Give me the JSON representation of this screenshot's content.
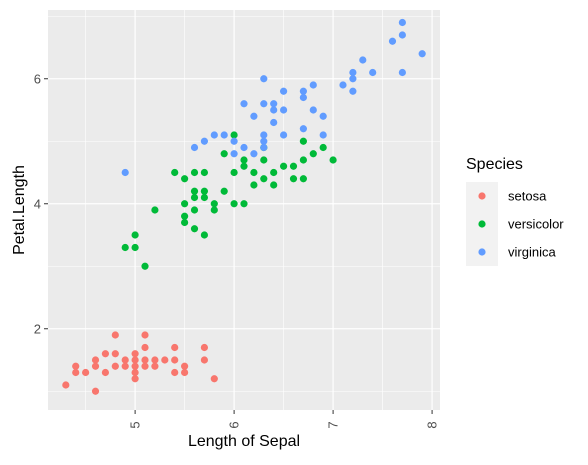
{
  "chart_data": {
    "type": "scatter",
    "title": "",
    "xlabel": "Length of Sepal",
    "ylabel": "Petal.Length",
    "xlim": [
      4.12,
      8.08
    ],
    "ylim": [
      0.7,
      7.1
    ],
    "x_ticks": [
      5,
      6,
      7,
      8
    ],
    "x_tick_labels": [
      "5",
      "6",
      "7",
      "8"
    ],
    "y_ticks": [
      2,
      4,
      6
    ],
    "y_tick_labels": [
      "2",
      "4",
      "6"
    ],
    "grid": true,
    "legend": {
      "title": "Species",
      "position": "right"
    },
    "series": [
      {
        "name": "setosa",
        "color": "#F8766D",
        "points": [
          [
            4.3,
            1.1
          ],
          [
            4.4,
            1.3
          ],
          [
            4.4,
            1.4
          ],
          [
            4.5,
            1.3
          ],
          [
            4.6,
            1.0
          ],
          [
            4.6,
            1.4
          ],
          [
            4.6,
            1.5
          ],
          [
            4.7,
            1.3
          ],
          [
            4.7,
            1.6
          ],
          [
            4.8,
            1.4
          ],
          [
            4.8,
            1.6
          ],
          [
            4.8,
            1.9
          ],
          [
            4.9,
            1.4
          ],
          [
            4.9,
            1.5
          ],
          [
            5.0,
            1.2
          ],
          [
            5.0,
            1.3
          ],
          [
            5.0,
            1.4
          ],
          [
            5.0,
            1.5
          ],
          [
            5.0,
            1.6
          ],
          [
            5.1,
            1.4
          ],
          [
            5.1,
            1.5
          ],
          [
            5.1,
            1.7
          ],
          [
            5.1,
            1.9
          ],
          [
            5.2,
            1.4
          ],
          [
            5.2,
            1.5
          ],
          [
            5.3,
            1.5
          ],
          [
            5.4,
            1.3
          ],
          [
            5.4,
            1.5
          ],
          [
            5.4,
            1.7
          ],
          [
            5.5,
            1.3
          ],
          [
            5.5,
            1.4
          ],
          [
            5.7,
            1.5
          ],
          [
            5.7,
            1.7
          ],
          [
            5.8,
            1.2
          ]
        ]
      },
      {
        "name": "versicolor",
        "color": "#00BA38",
        "points": [
          [
            4.9,
            3.3
          ],
          [
            5.0,
            3.3
          ],
          [
            5.0,
            3.5
          ],
          [
            5.1,
            3.0
          ],
          [
            5.2,
            3.9
          ],
          [
            5.4,
            4.5
          ],
          [
            5.5,
            3.7
          ],
          [
            5.5,
            3.8
          ],
          [
            5.5,
            4.0
          ],
          [
            5.5,
            4.4
          ],
          [
            5.6,
            3.6
          ],
          [
            5.6,
            3.9
          ],
          [
            5.6,
            4.1
          ],
          [
            5.6,
            4.2
          ],
          [
            5.6,
            4.5
          ],
          [
            5.7,
            3.5
          ],
          [
            5.7,
            4.1
          ],
          [
            5.7,
            4.2
          ],
          [
            5.7,
            4.5
          ],
          [
            5.8,
            3.9
          ],
          [
            5.8,
            4.0
          ],
          [
            5.9,
            4.2
          ],
          [
            5.9,
            4.8
          ],
          [
            6.0,
            4.0
          ],
          [
            6.0,
            4.5
          ],
          [
            6.0,
            5.1
          ],
          [
            6.1,
            4.0
          ],
          [
            6.1,
            4.6
          ],
          [
            6.1,
            4.7
          ],
          [
            6.2,
            4.3
          ],
          [
            6.2,
            4.5
          ],
          [
            6.3,
            4.4
          ],
          [
            6.3,
            4.7
          ],
          [
            6.3,
            4.9
          ],
          [
            6.4,
            4.3
          ],
          [
            6.4,
            4.5
          ],
          [
            6.5,
            4.6
          ],
          [
            6.6,
            4.4
          ],
          [
            6.6,
            4.6
          ],
          [
            6.7,
            4.4
          ],
          [
            6.7,
            4.7
          ],
          [
            6.7,
            5.0
          ],
          [
            6.8,
            4.8
          ],
          [
            6.9,
            4.9
          ],
          [
            7.0,
            4.7
          ]
        ]
      },
      {
        "name": "virginica",
        "color": "#619CFF",
        "points": [
          [
            4.9,
            4.5
          ],
          [
            5.6,
            4.9
          ],
          [
            5.7,
            5.0
          ],
          [
            5.8,
            5.1
          ],
          [
            5.9,
            5.1
          ],
          [
            6.0,
            4.8
          ],
          [
            6.0,
            5.0
          ],
          [
            6.1,
            4.9
          ],
          [
            6.1,
            5.6
          ],
          [
            6.2,
            4.8
          ],
          [
            6.2,
            5.4
          ],
          [
            6.3,
            4.9
          ],
          [
            6.3,
            5.0
          ],
          [
            6.3,
            5.1
          ],
          [
            6.3,
            5.6
          ],
          [
            6.3,
            6.0
          ],
          [
            6.4,
            5.3
          ],
          [
            6.4,
            5.5
          ],
          [
            6.4,
            5.6
          ],
          [
            6.5,
            5.1
          ],
          [
            6.5,
            5.5
          ],
          [
            6.5,
            5.8
          ],
          [
            6.7,
            5.2
          ],
          [
            6.7,
            5.7
          ],
          [
            6.7,
            5.8
          ],
          [
            6.8,
            5.5
          ],
          [
            6.8,
            5.9
          ],
          [
            6.9,
            5.1
          ],
          [
            6.9,
            5.4
          ],
          [
            7.1,
            5.9
          ],
          [
            7.2,
            5.8
          ],
          [
            7.2,
            6.0
          ],
          [
            7.2,
            6.1
          ],
          [
            7.3,
            6.3
          ],
          [
            7.4,
            6.1
          ],
          [
            7.6,
            6.6
          ],
          [
            7.7,
            6.1
          ],
          [
            7.7,
            6.7
          ],
          [
            7.7,
            6.9
          ],
          [
            7.9,
            6.4
          ]
        ]
      }
    ]
  }
}
